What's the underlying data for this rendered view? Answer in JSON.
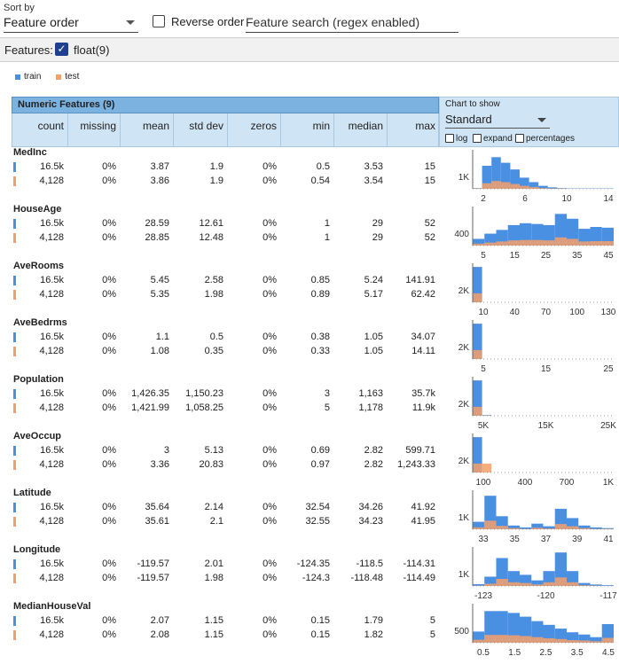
{
  "topbar": {
    "sort_label": "Sort by",
    "sort_value": "Feature order",
    "reverse_label": "Reverse order",
    "search_placeholder": "Feature search (regex enabled)"
  },
  "features_bar": {
    "label": "Features:",
    "float_label": "float(9)"
  },
  "legend": {
    "train": "train",
    "test": "test"
  },
  "colors": {
    "train": "#4a90e2",
    "test": "#f5a068",
    "test_dark": "#c07040"
  },
  "table": {
    "title": "Numeric Features (9)",
    "columns": [
      "count",
      "missing",
      "mean",
      "std dev",
      "zeros",
      "min",
      "median",
      "max"
    ]
  },
  "chart_header": {
    "label": "Chart to show",
    "selected": "Standard",
    "opt_log": "log",
    "opt_expand": "expand",
    "opt_percentages": "percentages"
  },
  "features": [
    {
      "name": "MedInc",
      "train": [
        "16.5k",
        "0%",
        "3.87",
        "1.9",
        "0%",
        "0.5",
        "3.53",
        "15"
      ],
      "test": [
        "4,128",
        "0%",
        "3.86",
        "1.9",
        "0%",
        "0.54",
        "3.54",
        "15"
      ],
      "ylabel": "1K",
      "ticks": [
        "2",
        "6",
        "10",
        "14"
      ],
      "chart_data": {
        "type": "bar",
        "train": [
          2,
          62,
          85,
          70,
          52,
          30,
          18,
          8,
          4,
          2,
          1,
          1,
          1,
          1,
          1
        ],
        "test": [
          1,
          15,
          21,
          18,
          13,
          8,
          5,
          2,
          1,
          1,
          0,
          0,
          0,
          0,
          0
        ]
      }
    },
    {
      "name": "HouseAge",
      "train": [
        "16.5k",
        "0%",
        "28.59",
        "12.61",
        "0%",
        "1",
        "29",
        "52"
      ],
      "test": [
        "4,128",
        "0%",
        "28.85",
        "12.48",
        "0%",
        "1",
        "29",
        "52"
      ],
      "ylabel": "400",
      "ticks": [
        "5",
        "15",
        "25",
        "35",
        "45"
      ],
      "chart_data": {
        "type": "bar",
        "train": [
          18,
          32,
          42,
          55,
          60,
          58,
          55,
          85,
          72,
          45,
          50,
          48
        ],
        "test": [
          5,
          8,
          11,
          14,
          15,
          15,
          14,
          22,
          18,
          11,
          12,
          12
        ]
      }
    },
    {
      "name": "AveRooms",
      "train": [
        "16.5k",
        "0%",
        "5.45",
        "2.58",
        "0%",
        "0.85",
        "5.24",
        "141.91"
      ],
      "test": [
        "4,128",
        "0%",
        "5.35",
        "1.98",
        "0%",
        "0.89",
        "5.17",
        "62.42"
      ],
      "ylabel": "2K",
      "ticks": [
        "10",
        "40",
        "70",
        "100",
        "130"
      ],
      "chart_data": {
        "type": "bar",
        "train": [
          95,
          0,
          0,
          0,
          0,
          0,
          0,
          0,
          0,
          0,
          0,
          0,
          0,
          0,
          0
        ],
        "test": [
          24,
          0,
          0,
          0,
          0,
          0,
          0,
          0,
          0,
          0,
          0,
          0,
          0,
          0,
          0
        ]
      }
    },
    {
      "name": "AveBedrms",
      "train": [
        "16.5k",
        "0%",
        "1.1",
        "0.5",
        "0%",
        "0.38",
        "1.05",
        "34.07"
      ],
      "test": [
        "4,128",
        "0%",
        "1.08",
        "0.35",
        "0%",
        "0.33",
        "1.05",
        "14.11"
      ],
      "ylabel": "2K",
      "ticks": [
        "5",
        "15",
        "25"
      ],
      "chart_data": {
        "type": "bar",
        "train": [
          95,
          0,
          0,
          0,
          0,
          0,
          0,
          0,
          0,
          0,
          0,
          0,
          0,
          0,
          0
        ],
        "test": [
          24,
          0,
          0,
          0,
          0,
          0,
          0,
          0,
          0,
          0,
          0,
          0,
          0,
          0,
          0
        ]
      }
    },
    {
      "name": "Population",
      "train": [
        "16.5k",
        "0%",
        "1,426.35",
        "1,150.23",
        "0%",
        "3",
        "1,163",
        "35.7k"
      ],
      "test": [
        "4,128",
        "0%",
        "1,421.99",
        "1,058.25",
        "0%",
        "5",
        "1,178",
        "11.9k"
      ],
      "ylabel": "2K",
      "ticks": [
        "5K",
        "15K",
        "25K"
      ],
      "chart_data": {
        "type": "bar",
        "train": [
          95,
          2,
          0,
          0,
          0,
          0,
          0,
          0,
          0,
          0,
          0,
          0,
          0,
          0,
          0
        ],
        "test": [
          24,
          1,
          0,
          0,
          0,
          0,
          0,
          0,
          0,
          0,
          0,
          0,
          0,
          0,
          0
        ]
      }
    },
    {
      "name": "AveOccup",
      "train": [
        "16.5k",
        "0%",
        "3",
        "5.13",
        "0%",
        "0.69",
        "2.82",
        "599.71"
      ],
      "test": [
        "4,128",
        "0%",
        "3.36",
        "20.83",
        "0%",
        "0.97",
        "2.82",
        "1,243.33"
      ],
      "ylabel": "2K",
      "ticks": [
        "100",
        "400",
        "700",
        "1K"
      ],
      "chart_data": {
        "type": "bar",
        "train": [
          95,
          0,
          0,
          0,
          0,
          0,
          0,
          0,
          0,
          0,
          0,
          0,
          0,
          0,
          0
        ],
        "test": [
          24,
          24,
          0,
          0,
          0,
          0,
          0,
          0,
          0,
          0,
          0,
          0,
          0,
          0,
          0
        ]
      }
    },
    {
      "name": "Latitude",
      "train": [
        "16.5k",
        "0%",
        "35.64",
        "2.14",
        "0%",
        "32.54",
        "34.26",
        "41.92"
      ],
      "test": [
        "4,128",
        "0%",
        "35.61",
        "2.1",
        "0%",
        "32.55",
        "34.23",
        "41.95"
      ],
      "ylabel": "1K",
      "ticks": [
        "33",
        "35",
        "37",
        "39",
        "41"
      ],
      "chart_data": {
        "type": "bar",
        "train": [
          20,
          90,
          35,
          10,
          5,
          15,
          8,
          55,
          30,
          10,
          5,
          3
        ],
        "test": [
          5,
          23,
          9,
          3,
          1,
          4,
          2,
          14,
          8,
          3,
          1,
          1
        ]
      }
    },
    {
      "name": "Longitude",
      "train": [
        "16.5k",
        "0%",
        "-119.57",
        "2.01",
        "0%",
        "-124.35",
        "-118.5",
        "-114.31"
      ],
      "test": [
        "4,128",
        "0%",
        "-119.57",
        "1.98",
        "0%",
        "-124.3",
        "-118.48",
        "-114.49"
      ],
      "ylabel": "1K",
      "ticks": [
        "-123",
        "-120",
        "-117"
      ],
      "chart_data": {
        "type": "bar",
        "train": [
          5,
          25,
          75,
          40,
          30,
          15,
          40,
          90,
          40,
          8,
          4,
          2
        ],
        "test": [
          1,
          6,
          19,
          10,
          8,
          4,
          10,
          23,
          10,
          2,
          1,
          0
        ]
      }
    },
    {
      "name": "MedianHouseVal",
      "train": [
        "16.5k",
        "0%",
        "2.07",
        "1.15",
        "0%",
        "0.15",
        "1.79",
        "5"
      ],
      "test": [
        "4,128",
        "0%",
        "2.08",
        "1.15",
        "0%",
        "0.15",
        "1.82",
        "5"
      ],
      "ylabel": "500",
      "ticks": [
        "0.5",
        "1.5",
        "2.5",
        "3.5",
        "4.5"
      ],
      "chart_data": {
        "type": "bar",
        "train": [
          30,
          85,
          85,
          80,
          70,
          58,
          48,
          38,
          28,
          22,
          15,
          50
        ],
        "test": [
          8,
          21,
          21,
          20,
          18,
          15,
          12,
          10,
          7,
          6,
          4,
          13
        ]
      }
    }
  ]
}
